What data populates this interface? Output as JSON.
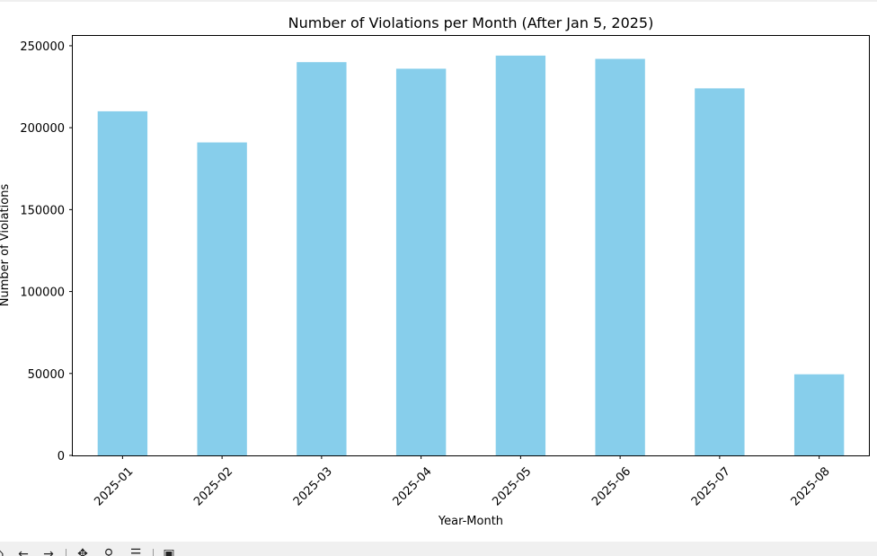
{
  "chart_data": {
    "type": "bar",
    "title": "Number of Violations per Month (After Jan 5, 2025)",
    "xlabel": "Year-Month",
    "ylabel": "Number of Violations",
    "categories": [
      "2025-01",
      "2025-02",
      "2025-03",
      "2025-04",
      "2025-05",
      "2025-06",
      "2025-07",
      "2025-08"
    ],
    "values": [
      210000,
      191000,
      240000,
      236000,
      244000,
      242000,
      224000,
      49500
    ],
    "ylim": [
      0,
      256000
    ],
    "yticks": [
      0,
      50000,
      100000,
      150000,
      200000,
      250000
    ],
    "ytick_labels": [
      "0",
      "50000",
      "100000",
      "150000",
      "200000",
      "250000"
    ],
    "bar_color": "#87ceeb",
    "grid": false,
    "legend": "none"
  },
  "toolbar": {
    "tools": [
      {
        "name": "home-icon",
        "glyph": "⌂"
      },
      {
        "name": "back-arrow-icon",
        "glyph": "←"
      },
      {
        "name": "forward-arrow-icon",
        "glyph": "→"
      },
      {
        "name": "pan-move-icon",
        "glyph": "✥"
      },
      {
        "name": "zoom-magnifier-icon",
        "glyph": "⚲"
      },
      {
        "name": "subplots-config-icon",
        "glyph": "☰"
      },
      {
        "name": "save-floppy-icon",
        "glyph": "▣"
      }
    ]
  }
}
